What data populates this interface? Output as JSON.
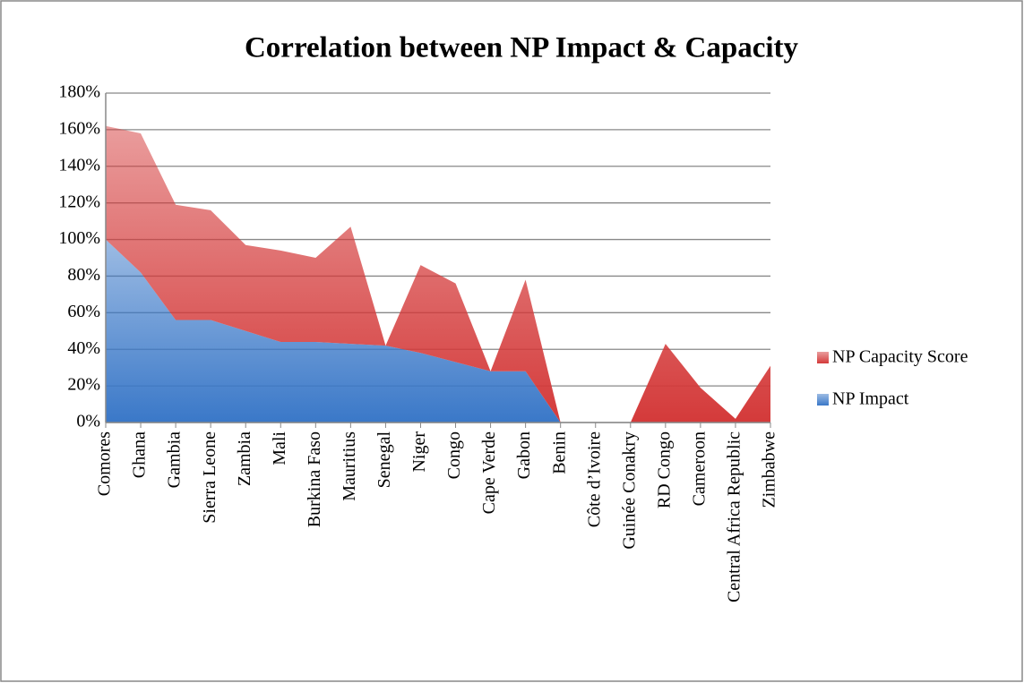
{
  "chart_data": {
    "type": "stacked-area",
    "title": "Correlation between NP Impact & Capacity",
    "categories": [
      "Comores",
      "Ghana",
      "Gambia",
      "Sierra Leone",
      "Zambia",
      "Mali",
      "Burkina Faso",
      "Mauritius",
      "Senegal",
      "Niger",
      "Congo",
      "Cape Verde",
      "Gabon",
      "Benin",
      "Côte d’Ivoire",
      "Guinée Conakry",
      "RD Congo",
      "Cameroon",
      "Central Africa Republic",
      "Zimbabwe"
    ],
    "series": [
      {
        "name": "NP Impact",
        "color": "#3a78c8",
        "values": [
          100,
          82,
          56,
          56,
          50,
          44,
          44,
          43,
          42,
          38,
          33,
          28,
          28,
          0,
          0,
          0,
          0,
          0,
          0,
          0
        ]
      },
      {
        "name": "NP Capacity Score",
        "color": "#d43a3a",
        "values": [
          62,
          76,
          63,
          60,
          47,
          50,
          46,
          64,
          0,
          48,
          43,
          0,
          50,
          0,
          0,
          0,
          43,
          19,
          2,
          31
        ]
      }
    ],
    "ylim": [
      0,
      180
    ],
    "yticks": [
      {
        "value": 0,
        "label": "0%"
      },
      {
        "value": 20,
        "label": "20%"
      },
      {
        "value": 40,
        "label": "40%"
      },
      {
        "value": 60,
        "label": "60%"
      },
      {
        "value": 80,
        "label": "80%"
      },
      {
        "value": 100,
        "label": "100%"
      },
      {
        "value": 120,
        "label": "120%"
      },
      {
        "value": 140,
        "label": "140%"
      },
      {
        "value": 160,
        "label": "160%"
      },
      {
        "value": 180,
        "label": "180%"
      }
    ],
    "grid": true,
    "legend": "right"
  }
}
